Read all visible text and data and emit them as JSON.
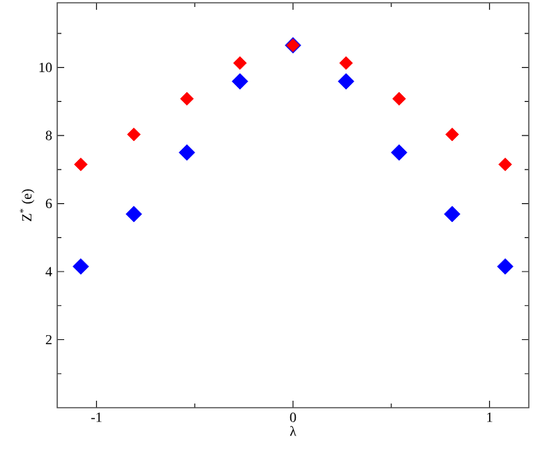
{
  "chart_data": {
    "type": "scatter",
    "xlabel": "λ",
    "ylabel": "Z$^{*}$ (e)",
    "marker": "diamond",
    "xlim": [
      -1.2,
      1.2
    ],
    "ylim": [
      0,
      11.9
    ],
    "xticks": [
      {
        "value": -1,
        "label": "-1"
      },
      {
        "value": -0.5,
        "label": null
      },
      0,
      {
        "value": 0.5,
        "label": null
      },
      1
    ],
    "yticks": [
      {
        "value": 1,
        "label": null
      },
      2,
      {
        "value": 3,
        "label": null
      },
      4,
      {
        "value": 5,
        "label": null
      },
      6,
      {
        "value": 7,
        "label": null
      },
      8,
      {
        "value": 9,
        "label": null
      },
      10,
      {
        "value": 11,
        "label": null
      }
    ],
    "series": [
      {
        "color": "#0000ff",
        "x": [
          -1.08,
          -0.81,
          -0.54,
          -0.27,
          0,
          0.27,
          0.54,
          0.81,
          1.08
        ],
        "values": [
          4.15,
          5.69,
          7.5,
          9.59,
          10.65,
          9.59,
          7.5,
          5.69,
          4.15
        ]
      },
      {
        "color": "#ff0000",
        "x": [
          -1.08,
          -0.81,
          -0.54,
          -0.27,
          0,
          0.27,
          0.54,
          0.81,
          1.08
        ],
        "values": [
          7.15,
          8.03,
          9.08,
          10.13,
          10.65,
          10.13,
          9.08,
          8.03,
          7.15
        ]
      }
    ]
  }
}
